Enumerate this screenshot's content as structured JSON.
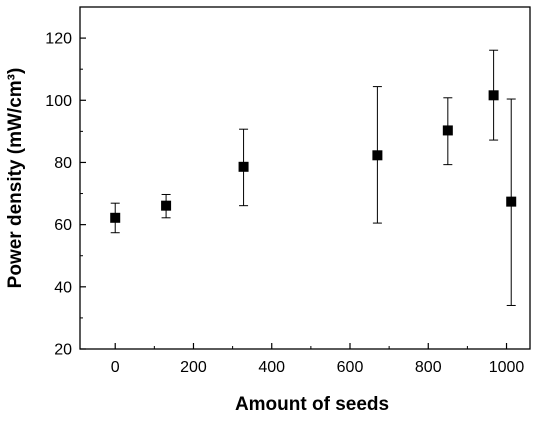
{
  "chart_data": {
    "type": "scatter",
    "title": "",
    "xlabel": "Amount of seeds",
    "ylabel": "Power density (mW/cm³)",
    "xlim": [
      -90,
      1060
    ],
    "ylim": [
      20,
      130
    ],
    "xticks": [
      0,
      200,
      400,
      600,
      800,
      1000
    ],
    "yticks": [
      20,
      40,
      60,
      80,
      100,
      120
    ],
    "grid": false,
    "legend": "none",
    "marker": "square",
    "color": "#000000",
    "series": [
      {
        "points": [
          {
            "x": 0,
            "y": 62.2,
            "err_low": 57.4,
            "err_high": 66.9
          },
          {
            "x": 130,
            "y": 66.1,
            "err_low": 62.2,
            "err_high": 69.7
          },
          {
            "x": 328,
            "y": 78.6,
            "err_low": 66.1,
            "err_high": 90.7
          },
          {
            "x": 670,
            "y": 82.3,
            "err_low": 60.5,
            "err_high": 104.4
          },
          {
            "x": 850,
            "y": 90.3,
            "err_low": 79.3,
            "err_high": 100.8
          },
          {
            "x": 967,
            "y": 101.6,
            "err_low": 87.2,
            "err_high": 116.1
          },
          {
            "x": 1012,
            "y": 67.4,
            "err_low": 34.0,
            "err_high": 100.4
          }
        ]
      }
    ]
  }
}
